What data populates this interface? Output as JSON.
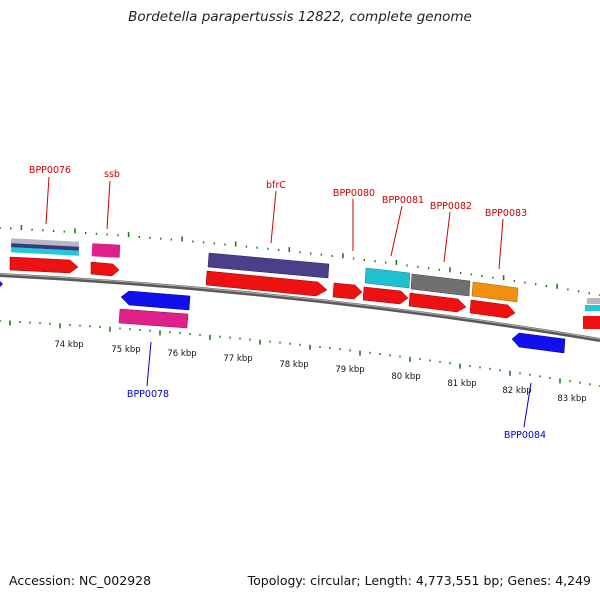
{
  "title": "Bordetella parapertussis 12822, complete genome",
  "footer": {
    "accession": "Accession: NC_002928",
    "topology": "Topology: circular; Length: 4,773,551 bp; Genes: 4,249"
  },
  "colors": {
    "forward_label": "#cc0000",
    "reverse_label": "#0000cc",
    "cds": "#ee1111",
    "tick_green": "#1a7a1a"
  },
  "scale": {
    "ticks": [
      "74 kbp",
      "75 kbp",
      "76 kbp",
      "77 kbp",
      "78 kbp",
      "79 kbp",
      "80 kbp",
      "81 kbp",
      "82 kbp",
      "83 kbp"
    ]
  },
  "gene_labels": {
    "forward": [
      "BPP0076",
      "ssb",
      "bfrC",
      "BPP0080",
      "BPP0081",
      "BPP0082",
      "BPP0083"
    ],
    "reverse": [
      "BPP0078",
      "BPP0084"
    ]
  },
  "features": {
    "forward_cds_colors": [
      "#7a7a8a",
      "#e0208a",
      "#4a3f8a",
      "#20c0d0",
      "#707070",
      "#f09010"
    ],
    "reverse_cds_colors": [
      "#1010ee",
      "#e0208a",
      "#1010ee"
    ]
  }
}
